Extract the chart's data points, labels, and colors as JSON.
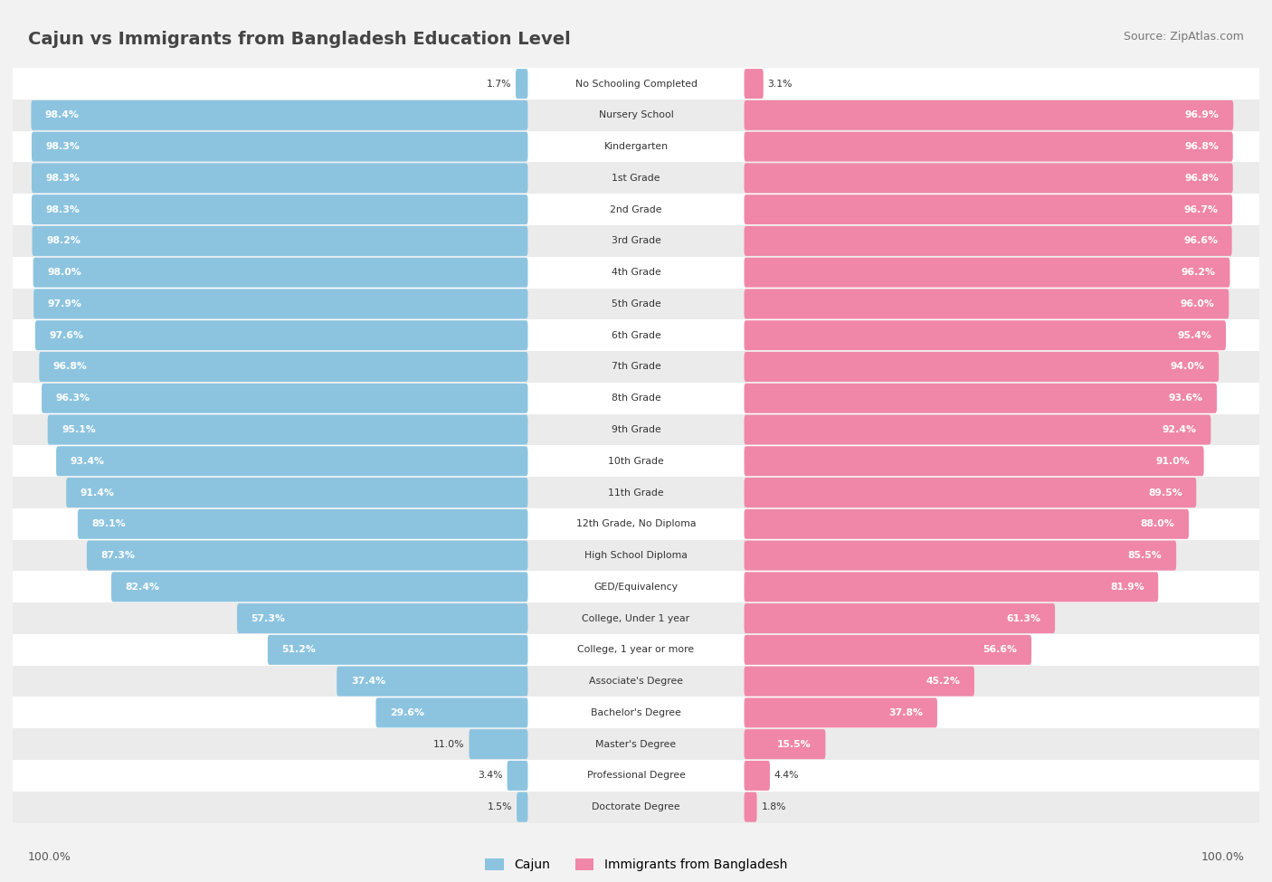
{
  "title": "Cajun vs Immigrants from Bangladesh Education Level",
  "source": "Source: ZipAtlas.com",
  "categories": [
    "No Schooling Completed",
    "Nursery School",
    "Kindergarten",
    "1st Grade",
    "2nd Grade",
    "3rd Grade",
    "4th Grade",
    "5th Grade",
    "6th Grade",
    "7th Grade",
    "8th Grade",
    "9th Grade",
    "10th Grade",
    "11th Grade",
    "12th Grade, No Diploma",
    "High School Diploma",
    "GED/Equivalency",
    "College, Under 1 year",
    "College, 1 year or more",
    "Associate's Degree",
    "Bachelor's Degree",
    "Master's Degree",
    "Professional Degree",
    "Doctorate Degree"
  ],
  "cajun": [
    1.7,
    98.4,
    98.3,
    98.3,
    98.3,
    98.2,
    98.0,
    97.9,
    97.6,
    96.8,
    96.3,
    95.1,
    93.4,
    91.4,
    89.1,
    87.3,
    82.4,
    57.3,
    51.2,
    37.4,
    29.6,
    11.0,
    3.4,
    1.5
  ],
  "bangladesh": [
    3.1,
    96.9,
    96.8,
    96.8,
    96.7,
    96.6,
    96.2,
    96.0,
    95.4,
    94.0,
    93.6,
    92.4,
    91.0,
    89.5,
    88.0,
    85.5,
    81.9,
    61.3,
    56.6,
    45.2,
    37.8,
    15.5,
    4.4,
    1.8
  ],
  "cajun_color": "#8CC4E0",
  "bangladesh_color": "#F087A8",
  "bg_color": "#F2F2F2",
  "row_color_even": "#FFFFFF",
  "row_color_odd": "#EBEBEB",
  "text_color": "#333333",
  "legend_cajun": "Cajun",
  "legend_bangladesh": "Immigrants from Bangladesh",
  "bottom_left": "100.0%",
  "bottom_right": "100.0%"
}
